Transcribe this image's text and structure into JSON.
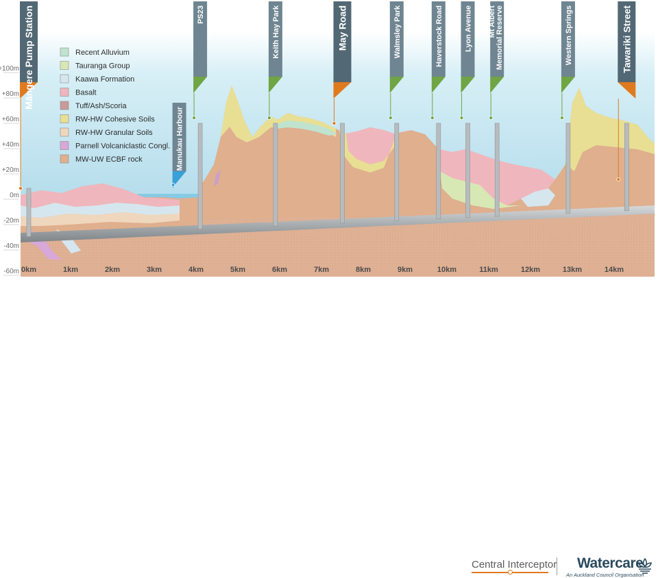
{
  "colors": {
    "sky_top": "#ffffff",
    "sky_bottom": "#b9e1ec",
    "pole": "#5f7380",
    "green_flag": "#6fa544",
    "orange_flag": "#e07a1f",
    "blue_flag": "#3aa0d8",
    "tunnel": "#b8bcbe"
  },
  "y_axis": {
    "labels": [
      "+100m",
      "+80m",
      "+60m",
      "+40m",
      "+20m",
      "0m",
      "-20m",
      "-40m",
      "-60m"
    ],
    "values": [
      100,
      80,
      60,
      40,
      20,
      0,
      -20,
      -40,
      -60
    ]
  },
  "x_axis": {
    "labels": [
      "0km",
      "1km",
      "2km",
      "3km",
      "4km",
      "5km",
      "6km",
      "7km",
      "8km",
      "9km",
      "10km",
      "11km",
      "12km",
      "13km",
      "14km"
    ],
    "values": [
      0,
      1,
      2,
      3,
      4,
      5,
      6,
      7,
      8,
      9,
      10,
      11,
      12,
      13,
      14
    ]
  },
  "legend": [
    {
      "label": "Recent Alluvium",
      "color": "#bfe3cf"
    },
    {
      "label": "Tauranga Group",
      "color": "#d8e8b4"
    },
    {
      "label": "Kaawa Formation",
      "color": "#d6e6ee"
    },
    {
      "label": "Basalt",
      "color": "#f0b6bd"
    },
    {
      "label": "Tuff/Ash/Scoria",
      "color": "#c99a9a"
    },
    {
      "label": "RW-HW Cohesive Soils",
      "color": "#e8df94"
    },
    {
      "label": "RW-HW Granular Soils",
      "color": "#efd7bd"
    },
    {
      "label": "Parnell Volcaniclastic Congl.",
      "color": "#d7a8d8"
    },
    {
      "label": "MW-UW ECBF rock",
      "color": "#dfaf8e"
    }
  ],
  "stations": [
    {
      "name": "Māngere Pump Station",
      "km": 0.0,
      "flag": "orange",
      "dark": true
    },
    {
      "name": "Manukau Harbour",
      "km": 3.6,
      "flag": "blue",
      "dark": false
    },
    {
      "name": "PS23",
      "km": 4.1,
      "flag": "green",
      "dark": false
    },
    {
      "name": "Keith Hay Park",
      "km": 5.9,
      "flag": "green",
      "dark": false
    },
    {
      "name": "May Road",
      "km": 7.5,
      "flag": "orange",
      "dark": true
    },
    {
      "name": "Walmsley Park",
      "km": 8.8,
      "flag": "green",
      "dark": false
    },
    {
      "name": "Haverstock Road",
      "km": 9.8,
      "flag": "green",
      "dark": false
    },
    {
      "name": "Lyon Avenue",
      "km": 10.5,
      "flag": "green",
      "dark": false
    },
    {
      "name": "Mt Albert Memorial Reserve",
      "km": 11.2,
      "flag": "green",
      "dark": false
    },
    {
      "name": "Western Springs",
      "km": 12.9,
      "flag": "green",
      "dark": false
    },
    {
      "name": "Tawariki Street",
      "km": 14.3,
      "flag": "orange",
      "dark": true
    }
  ],
  "footer": {
    "central_interceptor": "Central Interceptor",
    "central_interceptor_bold": "I",
    "watercare": "Watercare",
    "watercare_sub": "An Auckland Council Organisation"
  }
}
